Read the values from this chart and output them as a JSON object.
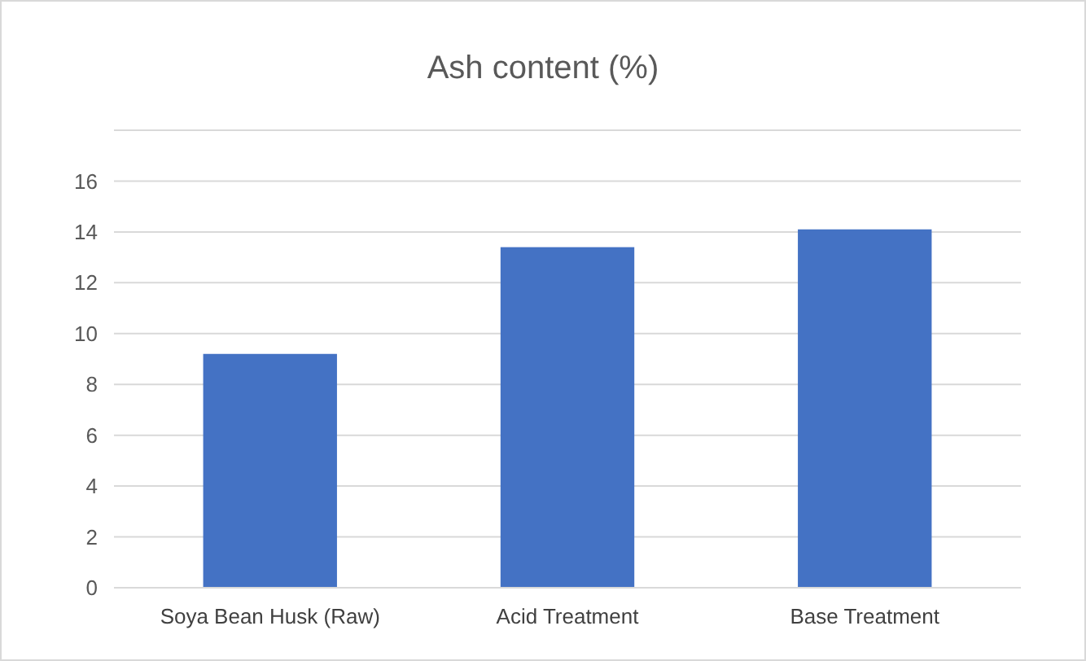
{
  "chart_data": {
    "type": "bar",
    "title": "Ash content (%)",
    "categories": [
      "Soya Bean Husk (Raw)",
      "Acid Treatment",
      "Base Treatment"
    ],
    "values": [
      9.2,
      13.4,
      14.1
    ],
    "color": "#4472c4",
    "ylim": [
      0,
      18
    ],
    "yticks": [
      0,
      2,
      4,
      6,
      8,
      10,
      12,
      14,
      16
    ],
    "grid": "y"
  }
}
